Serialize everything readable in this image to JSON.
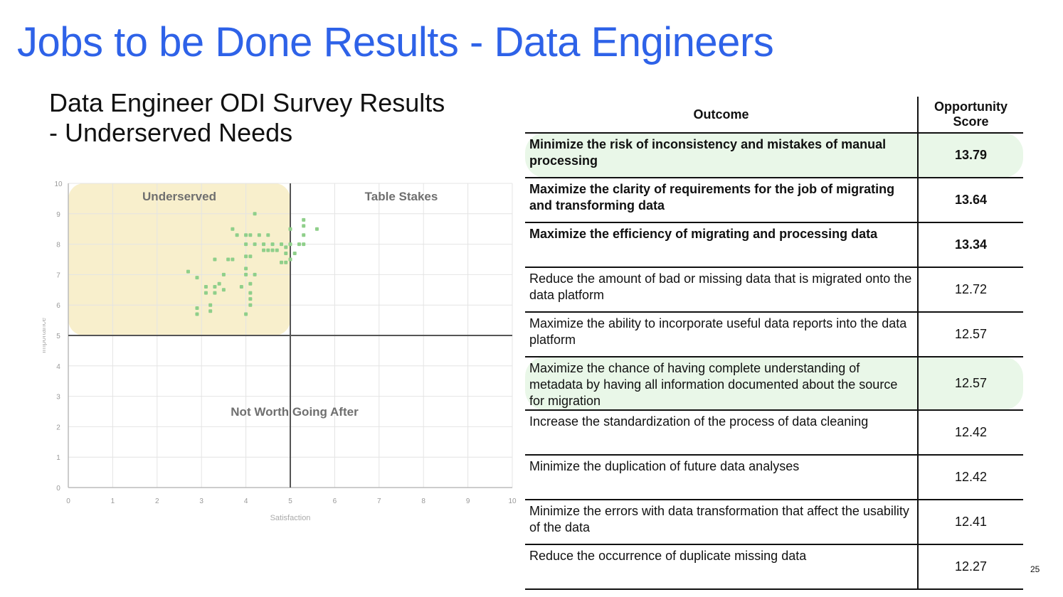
{
  "title": "Jobs to be Done Results - Data Engineers",
  "subtitle_line1": "Data Engineer ODI Survey Results",
  "subtitle_line2": "- Underserved Needs",
  "page_number": "25",
  "colors": {
    "title": "#2e62e8",
    "underserved_zone": "#f8efcc",
    "highlight_row": "#e9f7e8",
    "points": "#8fcf8a"
  },
  "chart_data": {
    "type": "scatter",
    "xlabel": "Satisfaction",
    "ylabel": "Importance",
    "xlim": [
      0,
      10
    ],
    "ylim": [
      0,
      10
    ],
    "x_ticks": [
      "0",
      "1",
      "2",
      "3",
      "4",
      "5",
      "6",
      "7",
      "8",
      "9",
      "10"
    ],
    "y_ticks": [
      "0",
      "1",
      "2",
      "3",
      "4",
      "5",
      "6",
      "7",
      "8",
      "9",
      "10"
    ],
    "grid": true,
    "dividers": {
      "x": 5,
      "y": 5
    },
    "quadrants": {
      "top_left": "Underserved",
      "top_right": "Table Stakes",
      "bottom": "Not Worth Going After"
    },
    "highlight_region": {
      "x": [
        0,
        5
      ],
      "y": [
        5,
        10
      ]
    },
    "points": [
      {
        "x": 4.2,
        "y": 9.0
      },
      {
        "x": 3.7,
        "y": 8.5
      },
      {
        "x": 5.3,
        "y": 8.8
      },
      {
        "x": 5.3,
        "y": 8.6
      },
      {
        "x": 5.6,
        "y": 8.5
      },
      {
        "x": 5.0,
        "y": 8.5
      },
      {
        "x": 5.3,
        "y": 8.3
      },
      {
        "x": 5.3,
        "y": 8.0
      },
      {
        "x": 5.2,
        "y": 8.0
      },
      {
        "x": 5.0,
        "y": 8.0
      },
      {
        "x": 5.1,
        "y": 7.7
      },
      {
        "x": 5.0,
        "y": 7.5
      },
      {
        "x": 3.8,
        "y": 8.3
      },
      {
        "x": 4.0,
        "y": 8.3
      },
      {
        "x": 4.1,
        "y": 8.3
      },
      {
        "x": 4.3,
        "y": 8.3
      },
      {
        "x": 4.5,
        "y": 8.3
      },
      {
        "x": 4.0,
        "y": 8.0
      },
      {
        "x": 4.2,
        "y": 8.0
      },
      {
        "x": 4.4,
        "y": 8.0
      },
      {
        "x": 4.6,
        "y": 8.0
      },
      {
        "x": 4.8,
        "y": 8.0
      },
      {
        "x": 4.9,
        "y": 7.9
      },
      {
        "x": 4.4,
        "y": 7.8
      },
      {
        "x": 4.5,
        "y": 7.8
      },
      {
        "x": 4.6,
        "y": 7.8
      },
      {
        "x": 4.7,
        "y": 7.8
      },
      {
        "x": 4.9,
        "y": 7.7
      },
      {
        "x": 4.0,
        "y": 7.6
      },
      {
        "x": 4.1,
        "y": 7.6
      },
      {
        "x": 3.3,
        "y": 7.5
      },
      {
        "x": 3.6,
        "y": 7.5
      },
      {
        "x": 3.7,
        "y": 7.5
      },
      {
        "x": 4.8,
        "y": 7.4
      },
      {
        "x": 4.9,
        "y": 7.4
      },
      {
        "x": 4.0,
        "y": 7.2
      },
      {
        "x": 3.5,
        "y": 7.0
      },
      {
        "x": 4.0,
        "y": 7.0
      },
      {
        "x": 4.2,
        "y": 7.0
      },
      {
        "x": 2.7,
        "y": 7.1
      },
      {
        "x": 2.9,
        "y": 6.9
      },
      {
        "x": 3.4,
        "y": 6.7
      },
      {
        "x": 4.1,
        "y": 6.7
      },
      {
        "x": 3.1,
        "y": 6.6
      },
      {
        "x": 3.3,
        "y": 6.6
      },
      {
        "x": 3.1,
        "y": 6.4
      },
      {
        "x": 3.3,
        "y": 6.4
      },
      {
        "x": 3.5,
        "y": 6.5
      },
      {
        "x": 3.9,
        "y": 6.6
      },
      {
        "x": 4.1,
        "y": 6.4
      },
      {
        "x": 4.1,
        "y": 6.2
      },
      {
        "x": 4.1,
        "y": 6.0
      },
      {
        "x": 2.9,
        "y": 5.9
      },
      {
        "x": 3.2,
        "y": 6.0
      },
      {
        "x": 2.9,
        "y": 5.7
      },
      {
        "x": 3.2,
        "y": 5.8
      },
      {
        "x": 4.0,
        "y": 5.7
      }
    ]
  },
  "table": {
    "headers": {
      "outcome": "Outcome",
      "score_line1": "Opportunity",
      "score_line2": "Score"
    },
    "rows": [
      {
        "outcome": "Minimize the risk of inconsistency and mistakes of manual processing",
        "score": "13.79"
      },
      {
        "outcome": "Maximize the clarity of requirements for the job of migrating and transforming data",
        "score": "13.64"
      },
      {
        "outcome": "Maximize the efficiency of migrating and processing data",
        "score": "13.34"
      },
      {
        "outcome": "Reduce the amount of bad or missing data that is migrated onto the data platform",
        "score": "12.72"
      },
      {
        "outcome": "Maximize the ability to incorporate useful data reports into the data platform",
        "score": "12.57"
      },
      {
        "outcome": "Maximize the chance of having complete understanding of metadata by having all information documented about the source for migration",
        "score": "12.57"
      },
      {
        "outcome": "Increase the standardization of the process of data cleaning",
        "score": "12.42"
      },
      {
        "outcome": "Minimize the duplication of future data analyses",
        "score": "12.42"
      },
      {
        "outcome": "Minimize the errors with data transformation that affect the usability of the data",
        "score": "12.41"
      },
      {
        "outcome": "Reduce the occurrence of duplicate missing data",
        "score": "12.27"
      }
    ]
  }
}
